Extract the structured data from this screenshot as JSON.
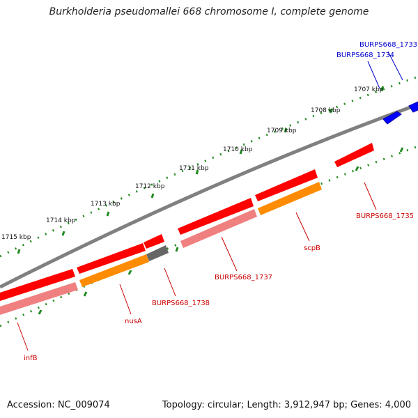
{
  "title": "Burkholderia pseudomallei 668 chromosome I, complete genome",
  "footer": {
    "accession": "Accession: NC_009074",
    "summary": "Topology: circular; Length: 3,912,947 bp; Genes: 4,000"
  },
  "ruler_ticks": [
    {
      "label": "1707 kbp"
    },
    {
      "label": "1708 kbp"
    },
    {
      "label": "1709 kbp"
    },
    {
      "label": "1710 kbp"
    },
    {
      "label": "1711 kbp"
    },
    {
      "label": "1712 kbp"
    },
    {
      "label": "1713 kbp"
    },
    {
      "label": "1714 kbp"
    },
    {
      "label": "1715 kbp"
    }
  ],
  "genes": [
    {
      "name": "BURPS668_1733",
      "color": "#0000cc"
    },
    {
      "name": "BURPS668_1734",
      "color": "#0000cc"
    },
    {
      "name": "BURPS668_1735",
      "color": "#cc0000"
    },
    {
      "name": "scpB",
      "color": "#cc0000"
    },
    {
      "name": "BURPS668_1737",
      "color": "#cc0000"
    },
    {
      "name": "BURPS668_1738",
      "color": "#cc0000"
    },
    {
      "name": "nusA",
      "color": "#cc0000"
    },
    {
      "name": "infB",
      "color": "#cc0000"
    }
  ],
  "colors": {
    "gene_red": "#ff0000",
    "gene_blue": "#0000ff",
    "cds_pink": "#f08080",
    "cds_orange": "#ff8c00",
    "cds_gray": "#666666",
    "backbone": "#808080",
    "ruler": "#228b22"
  }
}
